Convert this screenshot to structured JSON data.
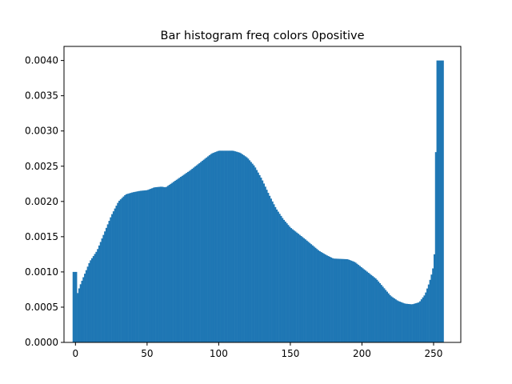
{
  "chart_data": {
    "type": "bar",
    "title": "Bar histogram freq colors 0positive",
    "xlabel": "",
    "ylabel": "",
    "xlim": [
      -8,
      269
    ],
    "ylim": [
      0,
      0.0042
    ],
    "color": "#1f77b4",
    "grid": false,
    "x_ticks": [
      0,
      50,
      100,
      150,
      200,
      250
    ],
    "x_tick_labels": [
      "0",
      "50",
      "100",
      "150",
      "200",
      "250"
    ],
    "y_ticks": [
      0,
      0.0005,
      0.001,
      0.0015,
      0.002,
      0.0025,
      0.003,
      0.0035,
      0.004
    ],
    "y_tick_labels": [
      "0.0000",
      "0.0005",
      "0.0010",
      "0.0015",
      "0.0020",
      "0.0025",
      "0.0030",
      "0.0035",
      "0.0040"
    ],
    "bin_start": -2,
    "bin_width": 1,
    "curve_points": [
      [
        -2,
        0.001
      ],
      [
        1,
        0.001
      ],
      [
        1.5,
        0.0007
      ],
      [
        3,
        0.0008
      ],
      [
        6,
        0.00095
      ],
      [
        10,
        0.00115
      ],
      [
        15,
        0.0013
      ],
      [
        20,
        0.00155
      ],
      [
        25,
        0.0018
      ],
      [
        30,
        0.002
      ],
      [
        35,
        0.0021
      ],
      [
        40,
        0.00213
      ],
      [
        45,
        0.00215
      ],
      [
        50,
        0.00216
      ],
      [
        55,
        0.0022
      ],
      [
        60,
        0.00221
      ],
      [
        63,
        0.0022
      ],
      [
        70,
        0.0023
      ],
      [
        80,
        0.00244
      ],
      [
        90,
        0.0026
      ],
      [
        95,
        0.00268
      ],
      [
        100,
        0.00272
      ],
      [
        110,
        0.00272
      ],
      [
        115,
        0.00269
      ],
      [
        120,
        0.00262
      ],
      [
        125,
        0.0025
      ],
      [
        130,
        0.00232
      ],
      [
        135,
        0.0021
      ],
      [
        140,
        0.0019
      ],
      [
        145,
        0.00175
      ],
      [
        150,
        0.00163
      ],
      [
        160,
        0.00147
      ],
      [
        170,
        0.0013
      ],
      [
        175,
        0.00124
      ],
      [
        180,
        0.00119
      ],
      [
        190,
        0.00118
      ],
      [
        195,
        0.00114
      ],
      [
        200,
        0.00106
      ],
      [
        210,
        0.0009
      ],
      [
        215,
        0.00078
      ],
      [
        220,
        0.00066
      ],
      [
        225,
        0.00059
      ],
      [
        230,
        0.00055
      ],
      [
        235,
        0.00054
      ],
      [
        240,
        0.00057
      ],
      [
        244,
        0.00068
      ],
      [
        247,
        0.00085
      ],
      [
        249,
        0.001
      ],
      [
        250,
        0.0011
      ],
      [
        251,
        0.0014
      ],
      [
        252,
        0.004
      ],
      [
        257,
        0.004
      ]
    ]
  }
}
